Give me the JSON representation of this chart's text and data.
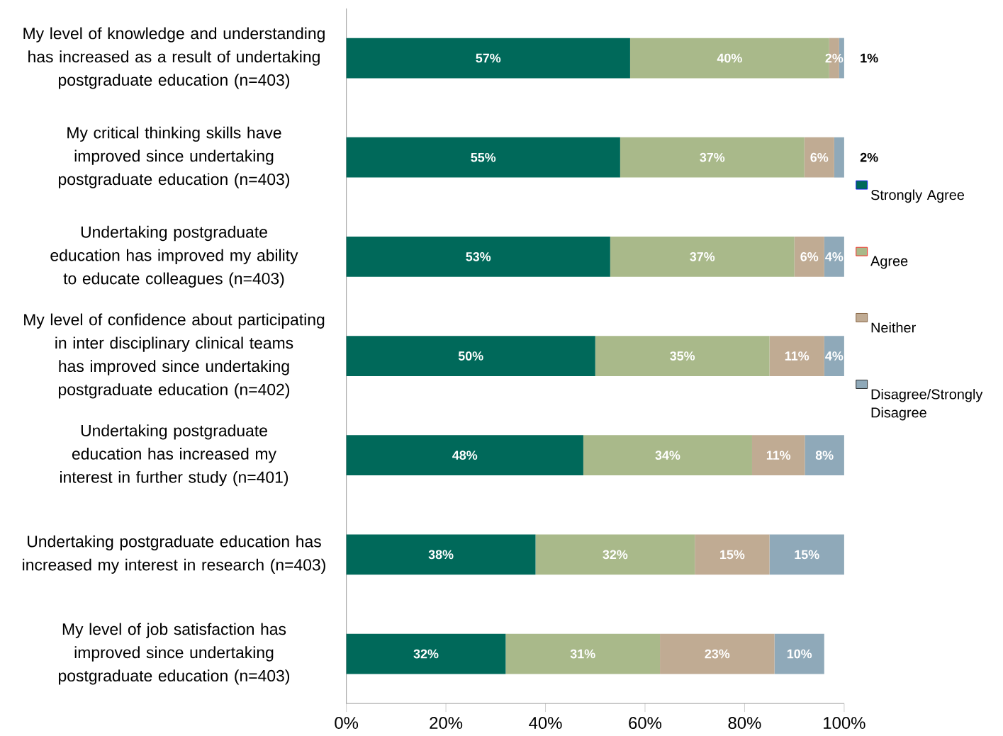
{
  "chart_data": {
    "type": "bar",
    "orientation": "horizontal",
    "stacked": true,
    "categories": [
      "My level of knowledge and understanding has increased as a result of undertaking postgraduate education (n=403)",
      "My critical thinking skills have improved since undertaking postgraduate education (n=403)",
      "Undertaking postgraduate education has improved my ability to educate colleagues (n=403)",
      "My level of confidence about participating in inter disciplinary clinical teams has improved since undertaking postgraduate education (n=402)",
      "Undertaking postgraduate education has increased my interest in further study (n=401)",
      "Undertaking postgraduate education has increased my interest in research (n=403)",
      "My level of job satisfaction has improved since undertaking postgraduate education (n=403)"
    ],
    "series": [
      {
        "name": "Strongly Agree",
        "color": "#00695a",
        "values": [
          57,
          55,
          53,
          50,
          47.6,
          38,
          32
        ],
        "value_labels": [
          "57%",
          "55%",
          "53%",
          "50%",
          "48%",
          "38%",
          "32%"
        ]
      },
      {
        "name": "Agree",
        "color": "#a9b98a",
        "values": [
          40,
          37,
          37,
          35,
          33.9,
          32,
          31
        ],
        "value_labels": [
          "40%",
          "37%",
          "37%",
          "35%",
          "34%",
          "32%",
          "31%"
        ]
      },
      {
        "name": "Neither",
        "color": "#c0ab93",
        "values": [
          2,
          6,
          6,
          11,
          10.6,
          15,
          23
        ],
        "value_labels": [
          "2%",
          "6%",
          "6%",
          "11%",
          "11%",
          "15%",
          "23%"
        ]
      },
      {
        "name": "Disagree/Strongly Disagree",
        "color": "#8fa9b9",
        "values": [
          1,
          2,
          4,
          4,
          7.9,
          15,
          10
        ],
        "value_labels": [
          "1%",
          "2%",
          "4%",
          "4%",
          "8%",
          "15%",
          "10%"
        ]
      }
    ],
    "xlim": [
      0,
      100
    ],
    "xticks": [
      {
        "value": 0,
        "label": "0%"
      },
      {
        "value": 20,
        "label": "20%"
      },
      {
        "value": 40,
        "label": "40%"
      },
      {
        "value": 60,
        "label": "60%"
      },
      {
        "value": 80,
        "label": "80%"
      },
      {
        "value": 100,
        "label": "100%"
      }
    ],
    "legend": "right"
  }
}
